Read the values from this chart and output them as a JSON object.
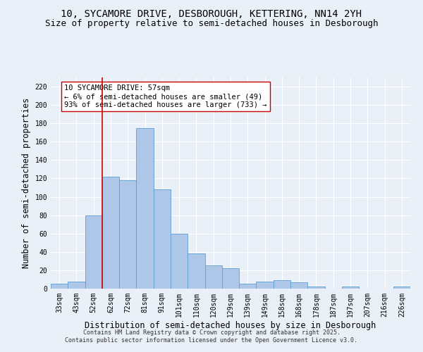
{
  "title_line1": "10, SYCAMORE DRIVE, DESBOROUGH, KETTERING, NN14 2YH",
  "title_line2": "Size of property relative to semi-detached houses in Desborough",
  "xlabel": "Distribution of semi-detached houses by size in Desborough",
  "ylabel": "Number of semi-detached properties",
  "categories": [
    "33sqm",
    "43sqm",
    "52sqm",
    "62sqm",
    "72sqm",
    "81sqm",
    "91sqm",
    "101sqm",
    "110sqm",
    "120sqm",
    "129sqm",
    "139sqm",
    "149sqm",
    "158sqm",
    "168sqm",
    "178sqm",
    "187sqm",
    "197sqm",
    "207sqm",
    "216sqm",
    "226sqm"
  ],
  "values": [
    5,
    8,
    80,
    122,
    118,
    175,
    108,
    60,
    38,
    25,
    22,
    5,
    8,
    9,
    7,
    2,
    0,
    2,
    0,
    0,
    2
  ],
  "bar_color": "#aec6e8",
  "bar_edge_color": "#5a9fd4",
  "vline_x_index": 2.5,
  "vline_color": "#cc0000",
  "annotation_text": "10 SYCAMORE DRIVE: 57sqm\n← 6% of semi-detached houses are smaller (49)\n93% of semi-detached houses are larger (733) →",
  "annotation_box_color": "#ffffff",
  "annotation_box_edge": "#cc0000",
  "ylim": [
    0,
    230
  ],
  "yticks": [
    0,
    20,
    40,
    60,
    80,
    100,
    120,
    140,
    160,
    180,
    200,
    220
  ],
  "bg_color": "#eaf0f8",
  "grid_color": "#ffffff",
  "footer_text": "Contains HM Land Registry data © Crown copyright and database right 2025.\nContains public sector information licensed under the Open Government Licence v3.0.",
  "title_fontsize": 10,
  "subtitle_fontsize": 9,
  "axis_label_fontsize": 8.5,
  "tick_fontsize": 7,
  "annotation_fontsize": 7.5,
  "footer_fontsize": 6
}
